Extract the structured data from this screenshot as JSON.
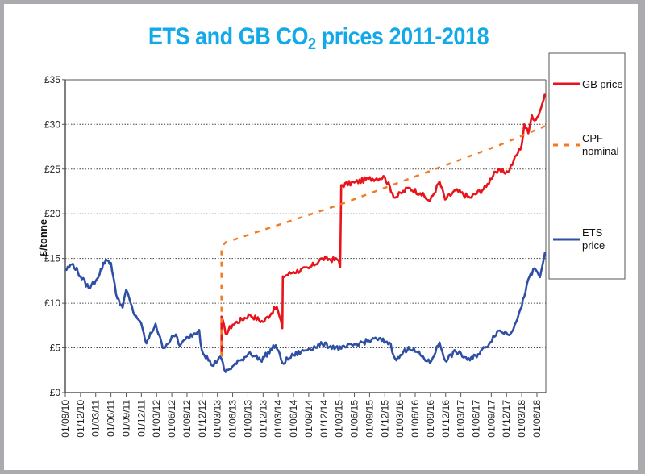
{
  "chart_data": {
    "type": "line",
    "title": "ETS and GB CO",
    "title_sub": "2",
    "title_rest": " prices 2011-2018",
    "xlabel": "",
    "ylabel": "£/tonne",
    "ylim": [
      0,
      35
    ],
    "yticks": [
      "£0",
      "£5",
      "£10",
      "£15",
      "£20",
      "£25",
      "£30",
      "£35"
    ],
    "x_unit": "months since 01/09/10",
    "xlim": [
      0,
      94.6
    ],
    "xticks": [
      "01/09/10",
      "01/12/10",
      "01/03/11",
      "01/06/11",
      "01/09/11",
      "01/12/11",
      "01/03/12",
      "01/06/12",
      "01/09/12",
      "01/12/12",
      "01/03/13",
      "01/06/13",
      "01/09/13",
      "01/12/13",
      "01/03/14",
      "01/06/14",
      "01/09/14",
      "01/12/14",
      "01/03/15",
      "01/06/15",
      "01/09/15",
      "01/12/15",
      "01/03/16",
      "01/06/16",
      "01/09/16",
      "01/12/16",
      "01/03/17",
      "01/06/17",
      "01/09/17",
      "01/12/17",
      "01/03/18",
      "01/06/18"
    ],
    "grid": "horizontal dotted",
    "legend_position": "right",
    "series": [
      {
        "name": "GB price",
        "color": "#e8141b",
        "style": "solid",
        "points": [
          [
            30.8,
            4
          ],
          [
            30.8,
            8.5
          ],
          [
            31.6,
            6.6
          ],
          [
            33,
            7.6
          ],
          [
            36.4,
            8.7
          ],
          [
            39,
            7.9
          ],
          [
            41.7,
            9.6
          ],
          [
            42.8,
            7.2
          ],
          [
            42.9,
            13.0
          ],
          [
            45,
            13.5
          ],
          [
            48,
            13.9
          ],
          [
            50.7,
            15.0
          ],
          [
            53.9,
            14.8
          ],
          [
            54.2,
            14.0
          ],
          [
            54.4,
            23.2
          ],
          [
            57,
            23.5
          ],
          [
            59.8,
            23.9
          ],
          [
            63,
            24.1
          ],
          [
            65,
            21.8
          ],
          [
            67.7,
            22.9
          ],
          [
            70,
            22.3
          ],
          [
            71.9,
            21.4
          ],
          [
            73.8,
            23.6
          ],
          [
            74.9,
            21.6
          ],
          [
            77,
            22.6
          ],
          [
            79.8,
            21.8
          ],
          [
            83,
            23.0
          ],
          [
            84.6,
            24.7
          ],
          [
            87.3,
            24.7
          ],
          [
            88.4,
            25.9
          ],
          [
            90,
            27.7
          ],
          [
            90.5,
            30.0
          ],
          [
            91.3,
            29.0
          ],
          [
            92,
            31.0
          ],
          [
            92.8,
            30.5
          ],
          [
            93.8,
            31.8
          ],
          [
            94.6,
            33.5
          ]
        ]
      },
      {
        "name": "CPF nominal",
        "color": "#f47a20",
        "style": "dashed",
        "points": [
          [
            30.8,
            4
          ],
          [
            30.8,
            16.3
          ],
          [
            31.6,
            16.8
          ],
          [
            54,
            21.0
          ],
          [
            85.7,
            27.7
          ],
          [
            94.6,
            29.8
          ]
        ]
      },
      {
        "name": "ETS price",
        "color": "#2e4fa3",
        "style": "solid",
        "points": [
          [
            0,
            13.7
          ],
          [
            1.5,
            14.4
          ],
          [
            3,
            13
          ],
          [
            4.6,
            11.7
          ],
          [
            6,
            12.5
          ],
          [
            8,
            14.9
          ],
          [
            9,
            14.5
          ],
          [
            10,
            11
          ],
          [
            11.3,
            9.5
          ],
          [
            12,
            11.5
          ],
          [
            13.4,
            9
          ],
          [
            14.7,
            8
          ],
          [
            16,
            5.5
          ],
          [
            17.8,
            7.7
          ],
          [
            19.2,
            5
          ],
          [
            21.8,
            6.5
          ],
          [
            22.6,
            5.2
          ],
          [
            24.2,
            6.2
          ],
          [
            26.4,
            7.0
          ],
          [
            26.9,
            4.8
          ],
          [
            29,
            3.0
          ],
          [
            30.5,
            4.0
          ],
          [
            31.6,
            2.3
          ],
          [
            34.8,
            3.7
          ],
          [
            36.4,
            4.5
          ],
          [
            38.5,
            3.6
          ],
          [
            41.5,
            5.3
          ],
          [
            42.8,
            3.3
          ],
          [
            45,
            4.2
          ],
          [
            48,
            4.9
          ],
          [
            50.7,
            5.4
          ],
          [
            54.4,
            4.9
          ],
          [
            58,
            5.5
          ],
          [
            61.4,
            6.0
          ],
          [
            63.9,
            5.6
          ],
          [
            65.3,
            3.6
          ],
          [
            67.7,
            5.1
          ],
          [
            70,
            4.2
          ],
          [
            71.9,
            3.3
          ],
          [
            73.8,
            5.6
          ],
          [
            74.9,
            3.6
          ],
          [
            77,
            4.6
          ],
          [
            79.8,
            3.6
          ],
          [
            83,
            5.1
          ],
          [
            85.2,
            6.9
          ],
          [
            87.8,
            6.6
          ],
          [
            90,
            9.6
          ],
          [
            91,
            12.1
          ],
          [
            92.5,
            13.9
          ],
          [
            93.6,
            12.9
          ],
          [
            94.6,
            15.7
          ]
        ]
      }
    ]
  }
}
